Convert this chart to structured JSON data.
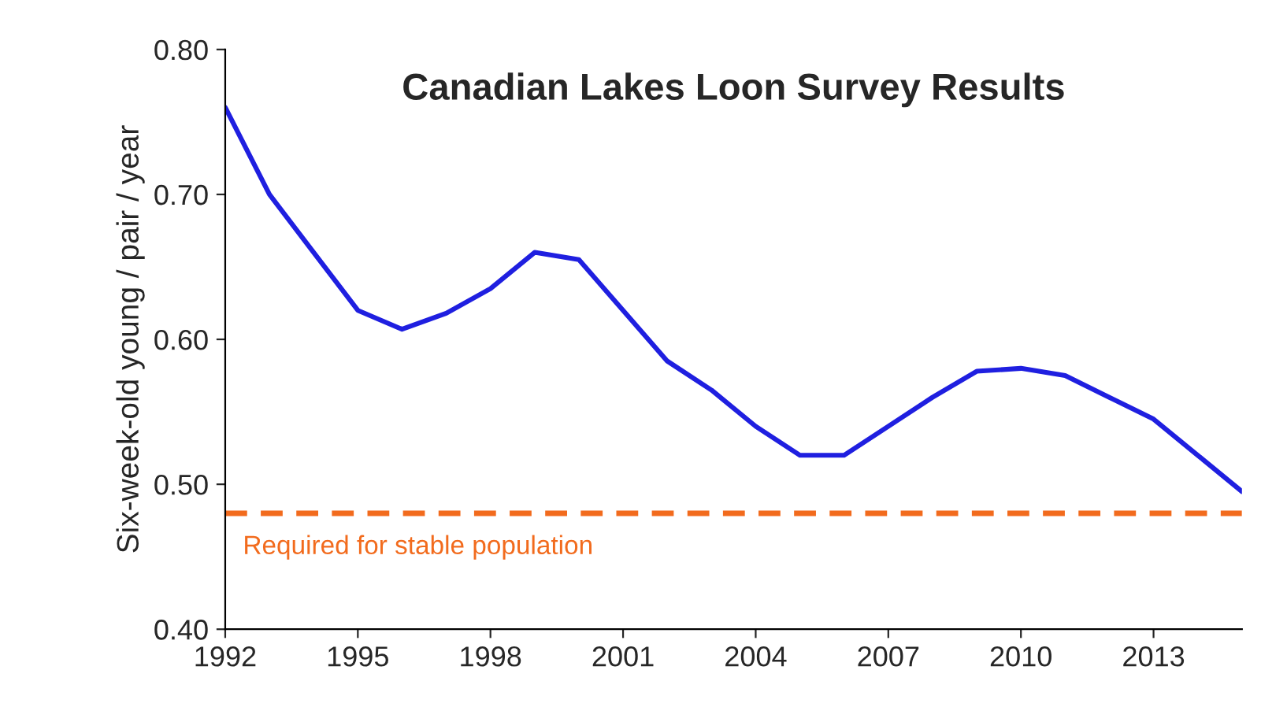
{
  "chart_data": {
    "type": "line",
    "title": "Canadian Lakes Loon Survey Results",
    "ylabel": "Six-week-old young / pair / year",
    "x": [
      1992,
      1993,
      1994,
      1995,
      1996,
      1997,
      1998,
      1999,
      2000,
      2001,
      2002,
      2003,
      2004,
      2005,
      2006,
      2007,
      2008,
      2009,
      2010,
      2011,
      2012,
      2013,
      2014,
      2015
    ],
    "series": [
      {
        "color": "#1f1fe0",
        "values": [
          0.76,
          0.7,
          0.66,
          0.62,
          0.607,
          0.618,
          0.635,
          0.66,
          0.655,
          0.62,
          0.585,
          0.565,
          0.54,
          0.52,
          0.52,
          0.54,
          0.56,
          0.578,
          0.58,
          0.575,
          0.56,
          0.545,
          0.52,
          0.495
        ]
      }
    ],
    "xlim": [
      1992,
      2015
    ],
    "xticks": [
      1992,
      1995,
      1998,
      2001,
      2004,
      2007,
      2010,
      2013
    ],
    "ylim": [
      0.4,
      0.8
    ],
    "yticks": [
      {
        "value": 0.4,
        "label": "0.40"
      },
      {
        "value": 0.5,
        "label": "0.50"
      },
      {
        "value": 0.6,
        "label": "0.60"
      },
      {
        "value": 0.7,
        "label": "0.70"
      },
      {
        "value": 0.8,
        "label": "0.80"
      }
    ],
    "ref_lines": [
      {
        "axis": "y",
        "value": 0.48,
        "label": "Required for stable population",
        "color": "#f26b1d",
        "line_style": "dashed"
      }
    ],
    "grid": false,
    "legend": false,
    "marker": "none",
    "line_style": "solid"
  }
}
